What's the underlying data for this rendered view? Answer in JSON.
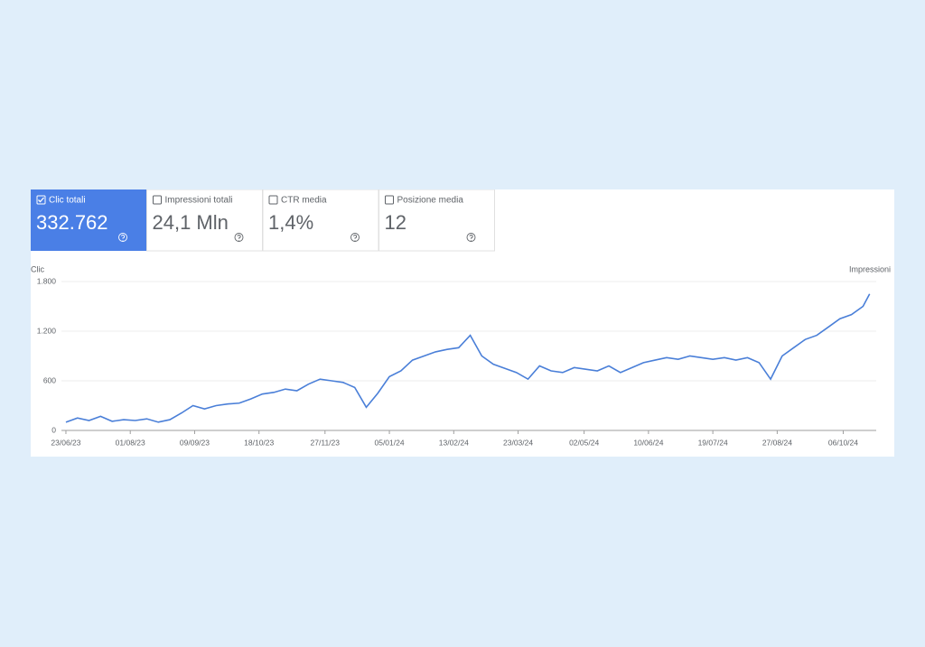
{
  "cards": [
    {
      "label": "Clic totali",
      "value": "332.762",
      "active": true
    },
    {
      "label": "Impressioni totali",
      "value": "24,1 Mln",
      "active": false
    },
    {
      "label": "CTR media",
      "value": "1,4%",
      "active": false
    },
    {
      "label": "Posizione media",
      "value": "12",
      "active": false
    }
  ],
  "chart_data": {
    "type": "line",
    "y_label": "Clic",
    "y2_label": "Impressioni",
    "x": [
      "23/06/23",
      "30/06/23",
      "07/07/23",
      "14/07/23",
      "21/07/23",
      "28/07/23",
      "04/08/23",
      "11/08/23",
      "18/08/23",
      "25/08/23",
      "01/09/23",
      "08/09/23",
      "15/09/23",
      "22/09/23",
      "29/09/23",
      "06/10/23",
      "13/10/23",
      "20/10/23",
      "27/10/23",
      "03/11/23",
      "10/11/23",
      "17/11/23",
      "24/11/23",
      "01/12/23",
      "08/12/23",
      "15/12/23",
      "22/12/23",
      "29/12/23",
      "05/01/24",
      "12/01/24",
      "19/01/24",
      "26/01/24",
      "02/02/24",
      "09/02/24",
      "16/02/24",
      "23/02/24",
      "01/03/24",
      "08/03/24",
      "15/03/24",
      "22/03/24",
      "29/03/24",
      "05/04/24",
      "12/04/24",
      "19/04/24",
      "26/04/24",
      "03/05/24",
      "10/05/24",
      "17/05/24",
      "24/05/24",
      "31/05/24",
      "07/06/24",
      "14/06/24",
      "21/06/24",
      "28/06/24",
      "05/07/24",
      "12/07/24",
      "19/07/24",
      "26/07/24",
      "02/08/24",
      "09/08/24",
      "16/08/24",
      "23/08/24",
      "30/08/24",
      "06/09/24",
      "13/09/24",
      "20/09/24",
      "27/09/24",
      "04/10/24",
      "11/10/24",
      "18/10/24",
      "22/10/24"
    ],
    "series": [
      {
        "name": "Clic",
        "color": "#4a7fd8",
        "values": [
          100,
          150,
          120,
          170,
          110,
          130,
          120,
          140,
          100,
          130,
          210,
          300,
          260,
          300,
          320,
          330,
          380,
          440,
          460,
          500,
          480,
          560,
          620,
          600,
          580,
          520,
          280,
          450,
          650,
          720,
          850,
          900,
          950,
          980,
          1000,
          1150,
          900,
          800,
          750,
          700,
          620,
          780,
          720,
          700,
          760,
          740,
          720,
          780,
          700,
          760,
          820,
          850,
          880,
          860,
          900,
          880,
          860,
          880,
          850,
          880,
          820,
          620,
          900,
          1000,
          1100,
          1150,
          1250,
          1350,
          1400,
          1500,
          1650
        ]
      }
    ],
    "xlim": [
      "17/06/23",
      "26/10/24"
    ],
    "xticks": [
      "23/06/23",
      "01/08/23",
      "09/09/23",
      "18/10/23",
      "27/11/23",
      "05/01/24",
      "13/02/24",
      "23/03/24",
      "02/05/24",
      "10/06/24",
      "19/07/24",
      "27/08/24",
      "06/10/24"
    ],
    "ylim": [
      0,
      1800
    ],
    "yticks": [
      0,
      600,
      {
        "value": 1200,
        "label": "1.200"
      },
      {
        "value": 1800,
        "label": "1.800"
      }
    ],
    "grid": true
  }
}
